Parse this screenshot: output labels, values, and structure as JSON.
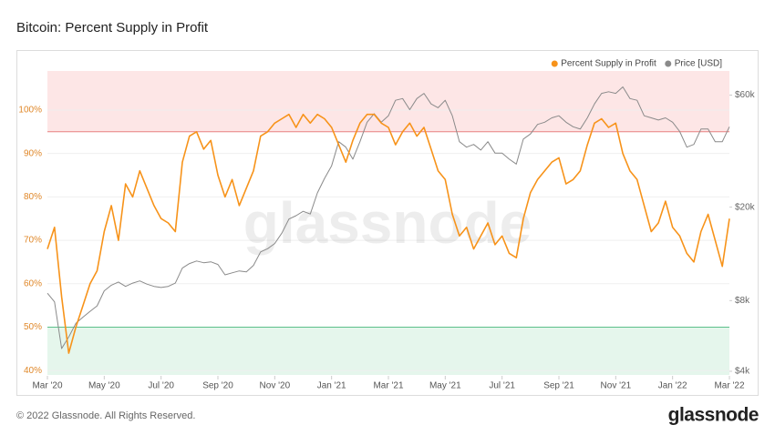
{
  "chart_data": {
    "type": "line",
    "title": "Bitcoin: Percent Supply in Profit",
    "watermark": "glassnode",
    "footer": "© 2022 Glassnode. All Rights Reserved.",
    "logo": "glassnode",
    "legend": "top-right",
    "grid": true,
    "upper_band": {
      "value": 95,
      "color": "#fde6e6",
      "line": "#e88080"
    },
    "lower_band": {
      "value": 50,
      "color": "#e5f6ec",
      "line": "#5cbf8a"
    },
    "xlim": [
      0,
      24
    ],
    "xticks": [
      {
        "value": 0,
        "label": "Mar '20"
      },
      {
        "value": 2,
        "label": "May '20"
      },
      {
        "value": 4,
        "label": "Jul '20"
      },
      {
        "value": 6,
        "label": "Sep '20"
      },
      {
        "value": 8,
        "label": "Nov '20"
      },
      {
        "value": 10,
        "label": "Jan '21"
      },
      {
        "value": 12,
        "label": "Mar '21"
      },
      {
        "value": 14,
        "label": "May '21"
      },
      {
        "value": 16,
        "label": "Jul '21"
      },
      {
        "value": 18,
        "label": "Sep '21"
      },
      {
        "value": 20,
        "label": "Nov '21"
      },
      {
        "value": 22,
        "label": "Jan '22"
      },
      {
        "value": 24,
        "label": "Mar '22"
      }
    ],
    "ylim": [
      39,
      109
    ],
    "yticks": [
      {
        "value": 40,
        "label": "40%"
      },
      {
        "value": 50,
        "label": "50%"
      },
      {
        "value": 60,
        "label": "60%"
      },
      {
        "value": 70,
        "label": "70%"
      },
      {
        "value": 80,
        "label": "80%"
      },
      {
        "value": 90,
        "label": "90%"
      },
      {
        "value": 100,
        "label": "100%"
      }
    ],
    "y2lim": [
      3860,
      76000
    ],
    "y2log": true,
    "y2ticks": [
      {
        "value": 4000,
        "label": "$4k"
      },
      {
        "value": 8000,
        "label": "$8k"
      },
      {
        "value": 20000,
        "label": "$20k"
      },
      {
        "value": 60000,
        "label": "$60k"
      }
    ],
    "x": [
      0,
      0.25,
      0.5,
      0.75,
      1,
      1.25,
      1.5,
      1.75,
      2,
      2.25,
      2.5,
      2.75,
      3,
      3.25,
      3.5,
      3.75,
      4,
      4.25,
      4.5,
      4.75,
      5,
      5.25,
      5.5,
      5.75,
      6,
      6.25,
      6.5,
      6.75,
      7,
      7.25,
      7.5,
      7.75,
      8,
      8.25,
      8.5,
      8.75,
      9,
      9.25,
      9.5,
      9.75,
      10,
      10.25,
      10.5,
      10.75,
      11,
      11.25,
      11.5,
      11.75,
      12,
      12.25,
      12.5,
      12.75,
      13,
      13.25,
      13.5,
      13.75,
      14,
      14.25,
      14.5,
      14.75,
      15,
      15.25,
      15.5,
      15.75,
      16,
      16.25,
      16.5,
      16.75,
      17,
      17.25,
      17.5,
      17.75,
      18,
      18.25,
      18.5,
      18.75,
      19,
      19.25,
      19.5,
      19.75,
      20,
      20.25,
      20.5,
      20.75,
      21,
      21.25,
      21.5,
      21.75,
      22,
      22.25,
      22.5,
      22.75,
      23,
      23.25,
      23.5,
      23.75,
      24
    ],
    "series": [
      {
        "name": "Percent Supply in Profit",
        "color": "#f7931a",
        "axis": "y",
        "values": [
          68,
          73,
          57,
          44,
          50,
          55,
          60,
          63,
          72,
          78,
          70,
          83,
          80,
          86,
          82,
          78,
          75,
          74,
          72,
          88,
          94,
          95,
          91,
          93,
          85,
          80,
          84,
          78,
          82,
          86,
          94,
          95,
          97,
          98,
          99,
          96,
          99,
          97,
          99,
          98,
          96,
          92,
          88,
          93,
          97,
          99,
          99,
          97,
          96,
          92,
          95,
          97,
          94,
          96,
          91,
          86,
          84,
          76,
          71,
          73,
          68,
          71,
          74,
          69,
          71,
          67,
          66,
          75,
          81,
          84,
          86,
          88,
          89,
          83,
          84,
          86,
          92,
          97,
          98,
          96,
          97,
          90,
          86,
          84,
          78,
          72,
          74,
          79,
          73,
          71,
          67,
          65,
          72,
          76,
          70,
          64,
          75
        ]
      },
      {
        "name": "Price [USD]",
        "color": "#8a8a8a",
        "axis": "y2",
        "values": [
          8600,
          7900,
          5000,
          5600,
          6400,
          6800,
          7200,
          7600,
          8800,
          9300,
          9600,
          9200,
          9500,
          9700,
          9400,
          9200,
          9100,
          9200,
          9500,
          11000,
          11500,
          11800,
          11600,
          11700,
          11400,
          10300,
          10500,
          10700,
          10600,
          11300,
          12900,
          13300,
          14000,
          15500,
          17800,
          18400,
          19200,
          18700,
          23000,
          26500,
          30000,
          38000,
          36000,
          32000,
          38000,
          46000,
          50000,
          46000,
          49000,
          57000,
          58000,
          52000,
          58000,
          61000,
          55000,
          53000,
          57000,
          49000,
          38000,
          36000,
          37000,
          35000,
          38000,
          34000,
          34000,
          32000,
          30500,
          39000,
          41000,
          45000,
          46000,
          48000,
          49000,
          46000,
          44000,
          43000,
          48000,
          55000,
          61000,
          62000,
          61000,
          65000,
          58000,
          57000,
          49000,
          48000,
          47000,
          48000,
          46000,
          42000,
          36000,
          37000,
          43000,
          43000,
          38000,
          38000,
          44000
        ]
      }
    ]
  }
}
